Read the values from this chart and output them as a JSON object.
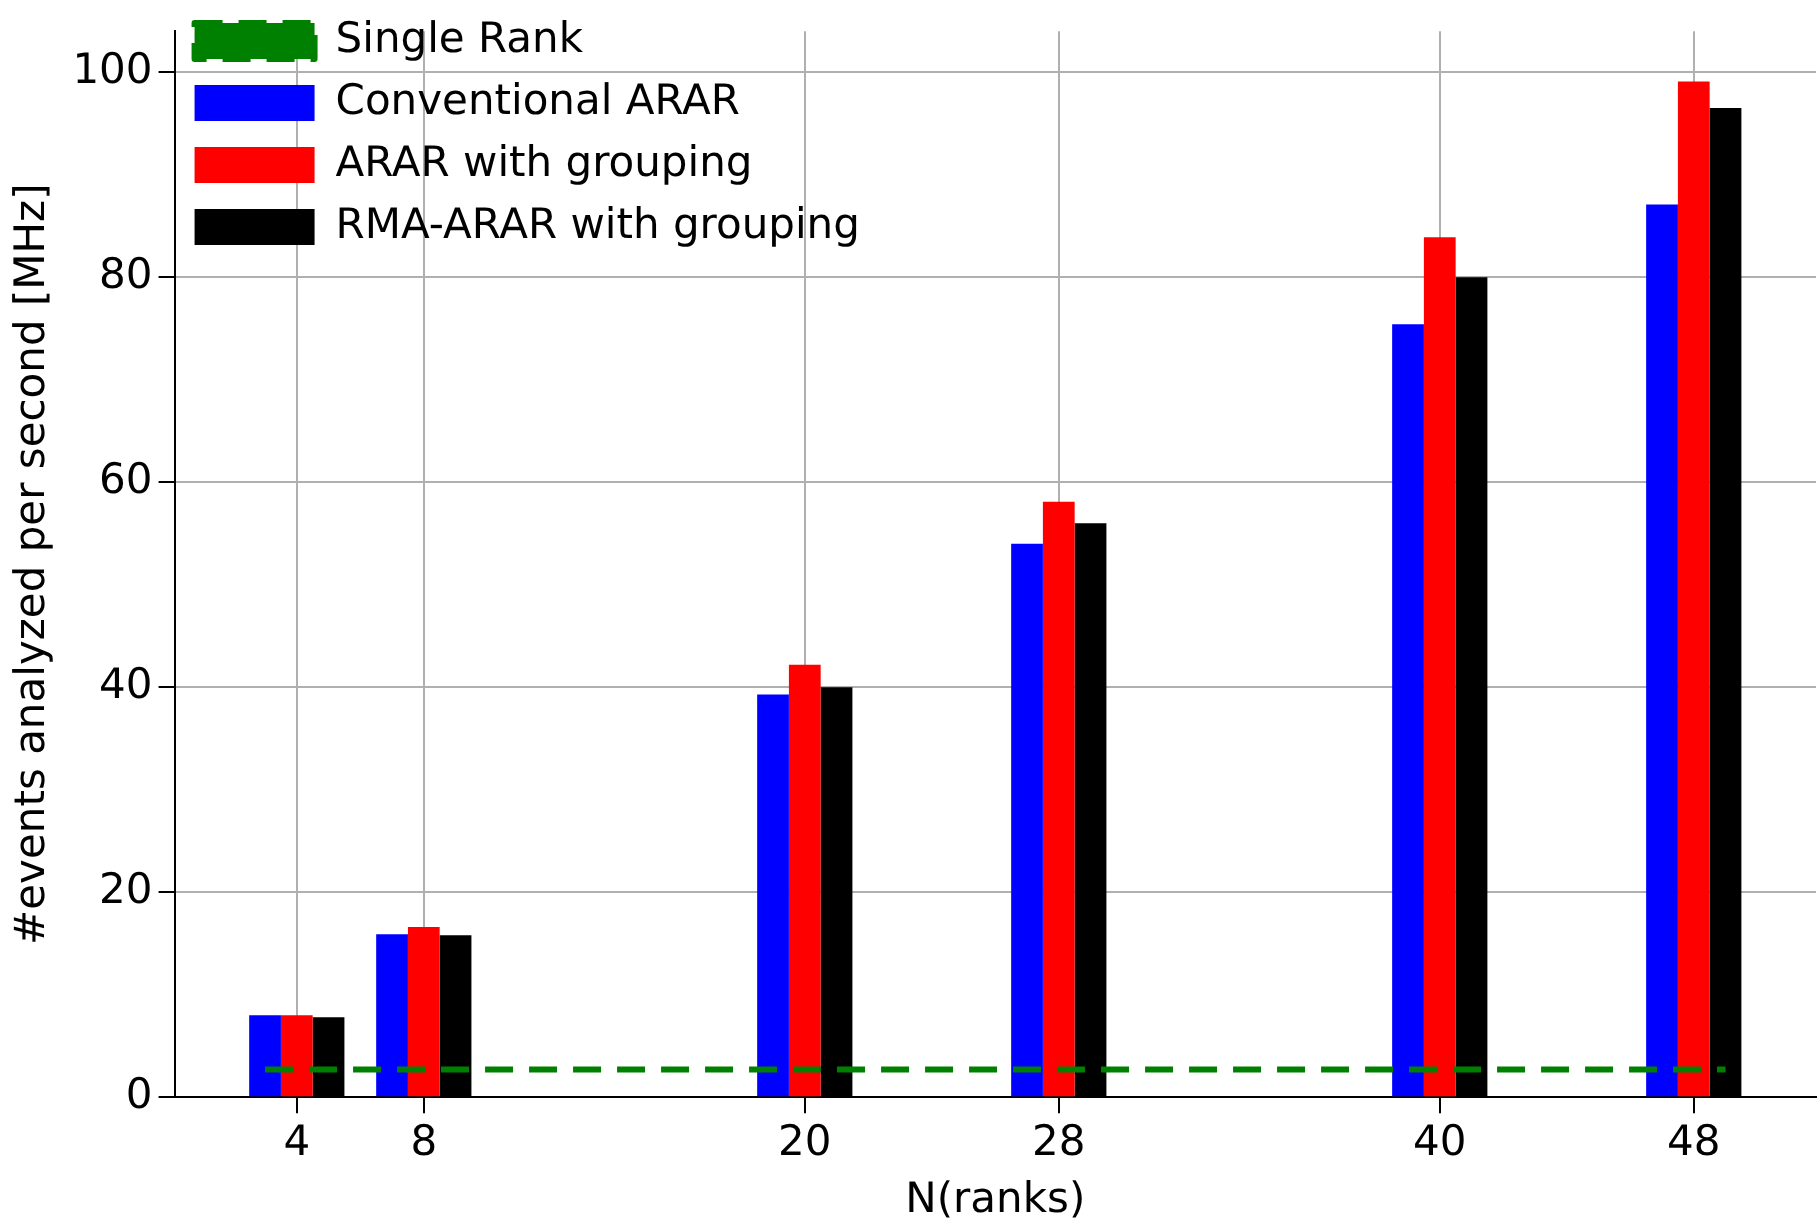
{
  "chart_data": {
    "type": "bar",
    "xlabel": "N(ranks)",
    "ylabel": "#events analyzed per second [MHz]",
    "x": [
      4,
      8,
      20,
      28,
      40,
      48
    ],
    "series": [
      {
        "name": "Single Rank",
        "type": "line",
        "color": "#008000",
        "line_style": "dashed",
        "x": [
          3,
          49
        ],
        "values": [
          2.7,
          2.7
        ]
      },
      {
        "name": "Conventional ARAR",
        "color": "#0000ff",
        "values": [
          8.0,
          15.9,
          39.3,
          54.0,
          75.4,
          87.1
        ]
      },
      {
        "name": "ARAR with grouping",
        "color": "#ff0000",
        "values": [
          8.0,
          16.6,
          42.2,
          58.1,
          83.9,
          99.1
        ]
      },
      {
        "name": "RMA-ARAR with grouping",
        "color": "#000000",
        "values": [
          7.8,
          15.8,
          40.0,
          56.0,
          80.0,
          96.5
        ]
      }
    ],
    "xlim": [
      0.15,
      51.85
    ],
    "xticks": [
      4,
      8,
      20,
      28,
      40,
      48
    ],
    "ylim": [
      0,
      104
    ],
    "yticks": [
      0,
      20,
      40,
      60,
      80,
      100
    ],
    "grid": true,
    "legend": "top left"
  }
}
